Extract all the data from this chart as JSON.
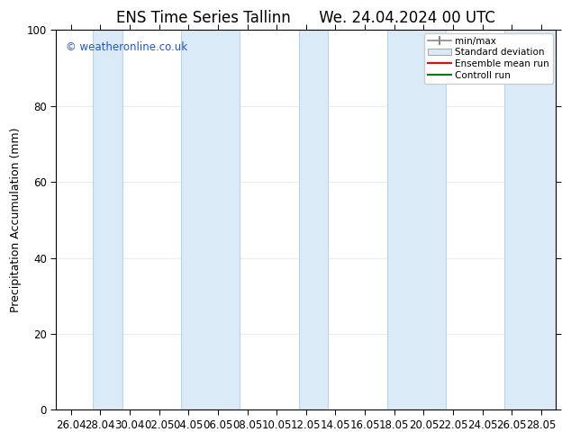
{
  "title": "ENS Time Series Tallinn      We. 24.04.2024 00 UTC",
  "ylabel": "Precipitation Accumulation (mm)",
  "watermark": "© weatheronline.co.uk",
  "ylim": [
    0,
    100
  ],
  "background_color": "#ffffff",
  "plot_bg_color": "#ffffff",
  "tick_labels": [
    "26.04",
    "28.04",
    "30.04",
    "02.05",
    "04.05",
    "06.05",
    "08.05",
    "10.05",
    "12.05",
    "14.05",
    "16.05",
    "18.05",
    "20.05",
    "22.05",
    "24.05",
    "26.05",
    "28.05"
  ],
  "band_color": "#daeaf7",
  "band_edge_color": "#b8d4ea",
  "legend_entries": [
    "min/max",
    "Standard deviation",
    "Ensemble mean run",
    "Controll run"
  ],
  "legend_colors": [
    "#aaaaaa",
    "#ccddee",
    "#ff0000",
    "#008000"
  ],
  "title_fontsize": 12,
  "label_fontsize": 9,
  "tick_fontsize": 8.5
}
